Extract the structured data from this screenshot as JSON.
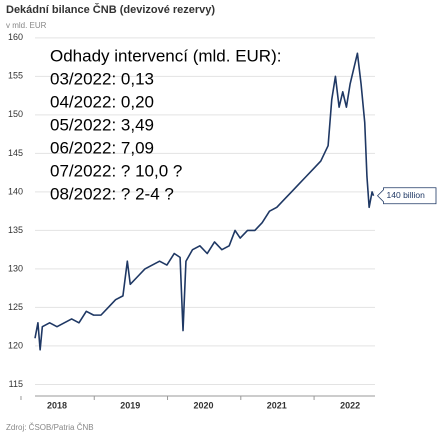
{
  "chart_data": {
    "type": "line",
    "title": "Dekádní bilance ČNB (devizové rezervy)",
    "subtitle": "v mld. EUR",
    "source": "Zdroj: ČSOB/Patria ČNB",
    "annotations": [
      "Odhady intervencí (mld. EUR):",
      "03/2022: 0,13",
      "04/2022: 0,20",
      "05/2022: 3,49",
      "06/2022: 7,09",
      "07/2022: ? 10,0 ?",
      "08/2022: ? 2-4 ?"
    ],
    "callout": "140 billion",
    "x": [
      2017.7,
      2017.74,
      2017.77,
      2017.8,
      2017.9,
      2018.0,
      2018.1,
      2018.2,
      2018.3,
      2018.4,
      2018.5,
      2018.6,
      2018.7,
      2018.8,
      2018.9,
      2018.96,
      2019.0,
      2019.1,
      2019.2,
      2019.3,
      2019.4,
      2019.5,
      2019.6,
      2019.68,
      2019.72,
      2019.76,
      2019.85,
      2019.95,
      2020.05,
      2020.15,
      2020.25,
      2020.35,
      2020.43,
      2020.5,
      2020.6,
      2020.7,
      2020.8,
      2020.9,
      2021.0,
      2021.1,
      2021.2,
      2021.3,
      2021.4,
      2021.5,
      2021.6,
      2021.7,
      2021.75,
      2021.8,
      2021.85,
      2021.9,
      2021.95,
      2022.0,
      2022.05,
      2022.1,
      2022.15,
      2022.2,
      2022.23,
      2022.26,
      2022.3,
      2022.32
    ],
    "series": [
      {
        "name": "devizové rezervy",
        "color": "#1f3864",
        "values": [
          121,
          123,
          119.5,
          122.5,
          123,
          122.5,
          123,
          123.5,
          123,
          124.5,
          124,
          124,
          125,
          126,
          126.5,
          131,
          128,
          129,
          130,
          130.5,
          131,
          130.5,
          132,
          131.5,
          122,
          131,
          132.5,
          133,
          132,
          133.5,
          132.5,
          133,
          135,
          134,
          135,
          135,
          136,
          137.5,
          138,
          139,
          140,
          141,
          142,
          143,
          144,
          146,
          152,
          155,
          151,
          153,
          151,
          154,
          156,
          158,
          154,
          149,
          142,
          138,
          140,
          139.5
        ]
      }
    ],
    "xlim": [
      2017.7,
      2022.34
    ],
    "xticks": [
      2018,
      2019,
      2020,
      2021,
      2022
    ],
    "ylim": [
      113.5,
      160.5
    ],
    "yticks": [
      115,
      120,
      125,
      130,
      135,
      140,
      145,
      150,
      155,
      160
    ],
    "grid": true
  }
}
